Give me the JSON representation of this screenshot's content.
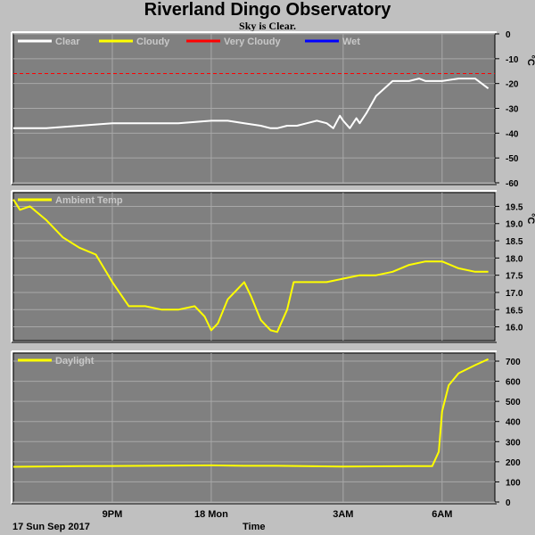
{
  "header": {
    "title": "Riverland Dingo Observatory",
    "subtitle": "Sky is Clear."
  },
  "footer": {
    "date_label": "17 Sun Sep 2017",
    "axis_label": "Time"
  },
  "x_ticks": [
    "9PM",
    "18 Mon",
    "3AM",
    "6AM"
  ],
  "colors": {
    "background": "#c0c0c0",
    "plot_bg": "#808080",
    "grid": "#a8a8a8",
    "clear": "#ffffff",
    "cloudy": "#ffff00",
    "very_cloudy": "#ff0000",
    "wet": "#0000ff"
  },
  "chart_data": [
    {
      "type": "line",
      "ylabel": "°C",
      "ylim": [
        -60,
        0
      ],
      "yticks": [
        0,
        -10,
        -20,
        -30,
        -40,
        -50,
        -60
      ],
      "legend": [
        "Clear",
        "Cloudy",
        "Very Cloudy",
        "Wet"
      ],
      "threshold": {
        "name": "Very Cloudy",
        "value": -16
      },
      "series": [
        {
          "name": "Clear",
          "color": "#ffffff",
          "x": [
            0,
            1,
            2,
            3,
            4,
            5,
            6,
            6.5,
            7,
            7.5,
            7.8,
            8,
            8.3,
            8.6,
            8.9,
            9.2,
            9.5,
            9.7,
            9.9,
            10,
            10.2,
            10.4,
            10.5,
            10.7,
            11,
            11.5,
            12,
            12.3,
            12.5,
            13,
            13.5,
            14,
            14.4
          ],
          "values": [
            -38,
            -38,
            -37,
            -36,
            -36,
            -36,
            -35,
            -35,
            -36,
            -37,
            -38,
            -38,
            -37,
            -37,
            -36,
            -35,
            -36,
            -38,
            -33,
            -35,
            -38,
            -34,
            -36,
            -32,
            -25,
            -19,
            -19,
            -18,
            -19,
            -19,
            -18,
            -18,
            -22
          ]
        },
        {
          "name": "Cloudy",
          "color": "#ffff00",
          "x": [],
          "values": []
        }
      ]
    },
    {
      "type": "line",
      "ylabel": "°C",
      "ylim": [
        15.6,
        19.9
      ],
      "yticks": [
        19.5,
        19,
        18.5,
        18,
        17.5,
        17,
        16.5,
        16
      ],
      "legend": [
        "Ambient Temp"
      ],
      "series": [
        {
          "name": "Ambient Temp",
          "color": "#ffff00",
          "x": [
            0,
            0.2,
            0.5,
            1,
            1.5,
            2,
            2.5,
            3,
            3.5,
            4,
            4.5,
            5,
            5.5,
            5.8,
            6,
            6.2,
            6.5,
            7,
            7.2,
            7.5,
            7.8,
            8,
            8.3,
            8.5,
            9,
            9.5,
            10,
            10.5,
            11,
            11.5,
            12,
            12.5,
            13,
            13.5,
            14,
            14.4
          ],
          "values": [
            19.7,
            19.4,
            19.5,
            19.1,
            18.6,
            18.3,
            18.1,
            17.3,
            16.6,
            16.6,
            16.5,
            16.5,
            16.6,
            16.3,
            15.9,
            16.1,
            16.8,
            17.3,
            16.9,
            16.2,
            15.9,
            15.85,
            16.5,
            17.3,
            17.3,
            17.3,
            17.4,
            17.5,
            17.5,
            17.6,
            17.8,
            17.9,
            17.9,
            17.7,
            17.6,
            17.6
          ]
        }
      ]
    },
    {
      "type": "line",
      "ylim": [
        0,
        740
      ],
      "yticks": [
        700,
        600,
        500,
        400,
        300,
        200,
        100,
        0
      ],
      "legend": [
        "Daylight"
      ],
      "series": [
        {
          "name": "Daylight",
          "color": "#ffff00",
          "x": [
            0,
            2,
            4,
            6,
            7,
            8,
            10,
            12,
            12.7,
            12.9,
            13,
            13.2,
            13.5,
            14,
            14.4
          ],
          "values": [
            175,
            178,
            180,
            182,
            180,
            180,
            176,
            178,
            178,
            250,
            450,
            580,
            640,
            680,
            710
          ]
        }
      ]
    }
  ]
}
